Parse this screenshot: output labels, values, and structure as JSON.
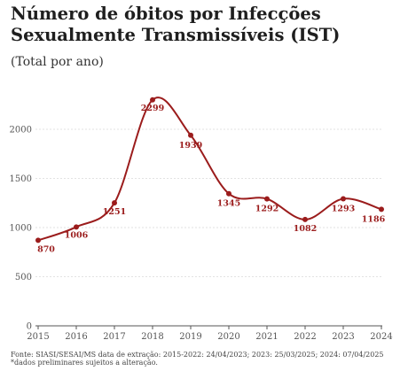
{
  "header": {
    "title": "Número de óbitos por Infecções Sexualmente Transmissíveis (IST)",
    "subtitle": "(Total por ano)"
  },
  "footer": {
    "note": "Fonte: SIASI/SESAI/MS data de extração: 2015-2022: 24/04/2023; 2023: 25/03/2025; 2024: 07/04/2025 *dados preliminares sujeitos a alteração."
  },
  "colors": {
    "line": "#9b1c1c",
    "grid": "#e2e2e2",
    "axis": "#555555"
  },
  "chart_data": {
    "type": "line",
    "title": "Número de óbitos por Infecções Sexualmente Transmissíveis (IST)",
    "subtitle": "(Total por ano)",
    "x": [
      2015,
      2016,
      2017,
      2018,
      2019,
      2020,
      2021,
      2022,
      2023,
      2024
    ],
    "yticks": [
      0,
      500,
      1000,
      1500,
      2000
    ],
    "ylim": [
      0,
      2300
    ],
    "grid": true,
    "smooth": true,
    "series": [
      {
        "values": [
          870,
          1006,
          1251,
          2299,
          1939,
          1345,
          1292,
          1082,
          1293,
          1186
        ],
        "labels": [
          "870",
          "1006",
          "1251",
          "2299",
          "1939",
          "1345",
          "1292",
          "1082",
          "1293",
          "1186"
        ]
      }
    ]
  }
}
